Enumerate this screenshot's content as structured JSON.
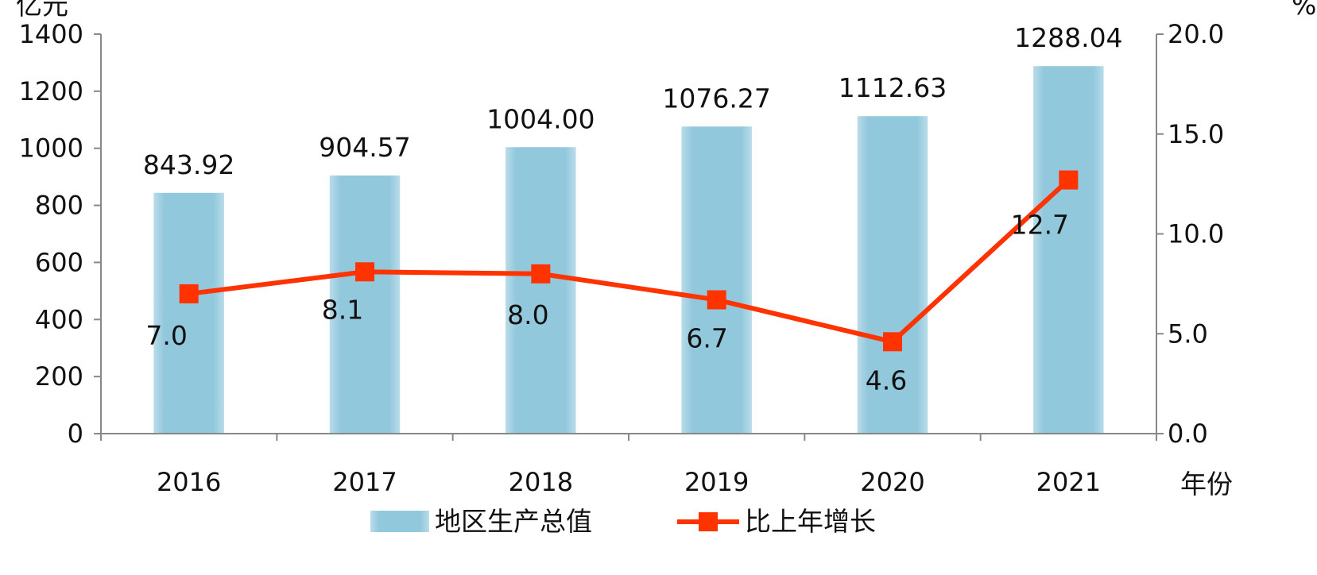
{
  "chart_data": {
    "type": "bar",
    "categories": [
      "2016",
      "2017",
      "2018",
      "2019",
      "2020",
      "2021"
    ],
    "series": [
      {
        "name": "地区生产总值",
        "type": "bar",
        "axis": "left",
        "values": [
          843.92,
          904.57,
          1004.0,
          1076.27,
          1112.63,
          1288.04
        ],
        "labels": [
          "843.92",
          "904.57",
          "1004.00",
          "1076.27",
          "1112.63",
          "1288.04"
        ],
        "color": "#92C8DC"
      },
      {
        "name": "比上年增长",
        "type": "line",
        "axis": "right",
        "values": [
          7.0,
          8.1,
          8.0,
          6.7,
          4.6,
          12.7
        ],
        "labels": [
          "7.0",
          "8.1",
          "8.0",
          "6.7",
          "4.6",
          "12.7"
        ],
        "color": "#FF3300"
      }
    ],
    "left_axis": {
      "unit": "亿元",
      "ylim": [
        0,
        1400
      ],
      "ticks": [
        "0",
        "200",
        "400",
        "600",
        "800",
        "1000",
        "1200",
        "1400"
      ]
    },
    "right_axis": {
      "unit": "%",
      "ylim": [
        0,
        20
      ],
      "ticks": [
        "0.0",
        "5.0",
        "10.0",
        "15.0",
        "20.0"
      ]
    },
    "xlabel": "年份",
    "grid": false,
    "legend": "bottom"
  }
}
